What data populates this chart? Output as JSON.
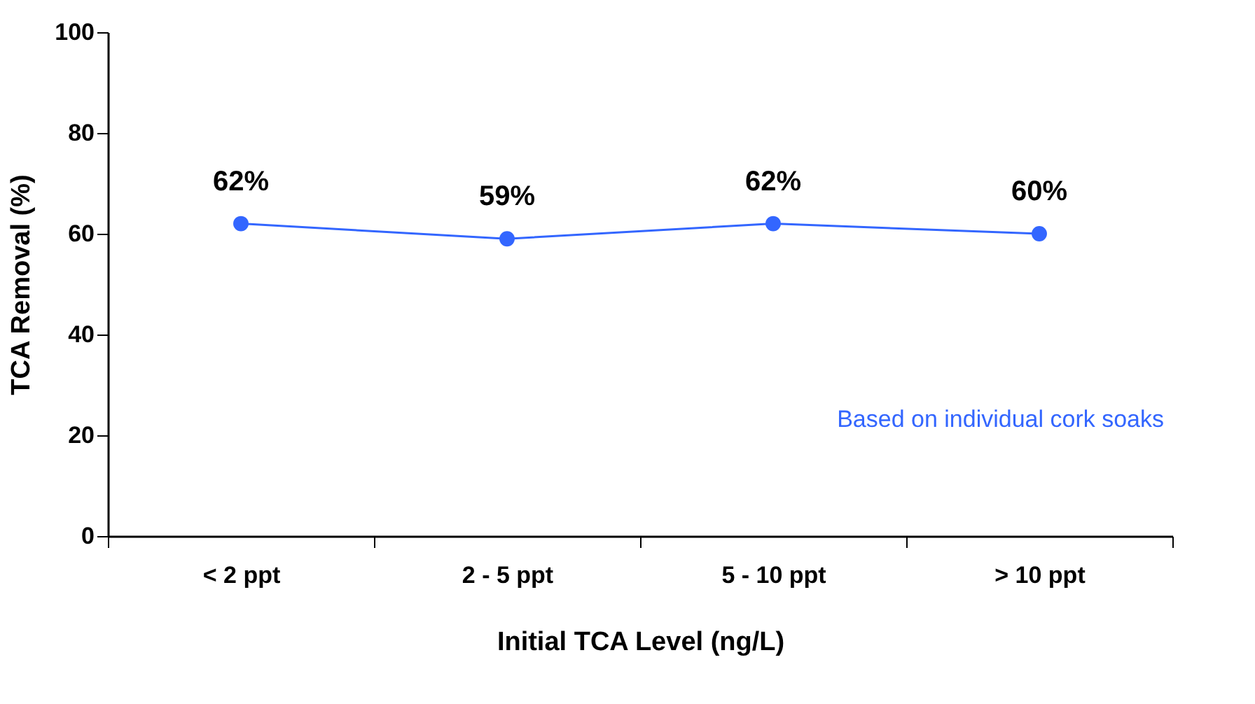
{
  "chart_data": {
    "type": "line",
    "xlabel": "Initial TCA Level (ng/L)",
    "ylabel": "TCA Removal (%)",
    "categories": [
      "< 2 ppt",
      "2 - 5 ppt",
      "5 - 10 ppt",
      "> 10 ppt"
    ],
    "series": [
      {
        "color": "#3366ff",
        "values": [
          62,
          59,
          62,
          60
        ],
        "value_labels": [
          "62%",
          "59%",
          "62%",
          "60%"
        ]
      }
    ],
    "ylim": [
      0,
      100
    ],
    "yticks": [
      0,
      20,
      40,
      60,
      80,
      100
    ],
    "grid": false,
    "marker": "circle",
    "line_style": "solid",
    "annotations": [
      "Based on individual cork soaks"
    ]
  }
}
